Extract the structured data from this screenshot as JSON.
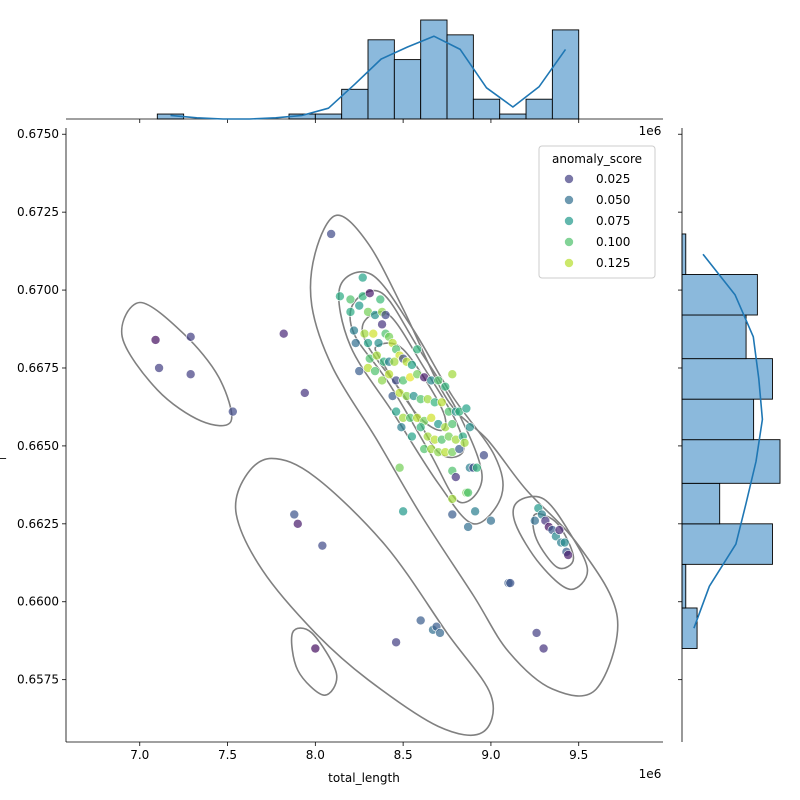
{
  "chart_data": {
    "type": "scatter",
    "kind": "jointplot",
    "xlabel": "total_length",
    "ylabel": "_",
    "x_offset_label": "1e6",
    "marginal_offset_label": "1e6",
    "xlim": [
      6.58,
      9.98
    ],
    "ylim": [
      0.6555,
      0.6752
    ],
    "x_ticks": [
      7.0,
      7.5,
      8.0,
      8.5,
      9.0,
      9.5
    ],
    "x_tick_labels": [
      "7.0",
      "7.5",
      "8.0",
      "8.5",
      "9.0",
      "9.5"
    ],
    "y_ticks": [
      0.6575,
      0.66,
      0.6625,
      0.665,
      0.6675,
      0.67,
      0.6725,
      0.675
    ],
    "y_tick_labels": [
      "0.6575",
      "0.6600",
      "0.6625",
      "0.6650",
      "0.6675",
      "0.6700",
      "0.6725",
      "0.6750"
    ],
    "grid": false,
    "hue": {
      "name": "anomaly_score",
      "colormap": "viridis",
      "range": [
        0.0,
        0.14
      ],
      "legend_placement": "top-right",
      "legend_values": [
        0.025,
        0.05,
        0.075,
        0.1,
        0.125
      ],
      "legend_labels": [
        "0.025",
        "0.050",
        "0.075",
        "0.100",
        "0.125"
      ]
    },
    "points": [
      [
        7.09,
        0.6684,
        0.005
      ],
      [
        7.11,
        0.6675,
        0.025
      ],
      [
        7.29,
        0.6685,
        0.025
      ],
      [
        7.29,
        0.6673,
        0.025
      ],
      [
        7.53,
        0.6661,
        0.03
      ],
      [
        7.82,
        0.6686,
        0.015
      ],
      [
        7.94,
        0.6667,
        0.02
      ],
      [
        8.09,
        0.6718,
        0.03
      ],
      [
        7.88,
        0.6628,
        0.035
      ],
      [
        7.9,
        0.6625,
        0.01
      ],
      [
        8.04,
        0.6618,
        0.03
      ],
      [
        8.0,
        0.6585,
        0.005
      ],
      [
        8.27,
        0.6704,
        0.08
      ],
      [
        8.14,
        0.6698,
        0.085
      ],
      [
        8.2,
        0.6697,
        0.1
      ],
      [
        8.27,
        0.6698,
        0.09
      ],
      [
        8.31,
        0.6699,
        0.01
      ],
      [
        8.37,
        0.6697,
        0.095
      ],
      [
        8.2,
        0.6693,
        0.085
      ],
      [
        8.25,
        0.6695,
        0.075
      ],
      [
        8.3,
        0.6693,
        0.11
      ],
      [
        8.34,
        0.6692,
        0.07
      ],
      [
        8.38,
        0.6693,
        0.115
      ],
      [
        8.4,
        0.6692,
        0.03
      ],
      [
        8.22,
        0.6687,
        0.06
      ],
      [
        8.28,
        0.6686,
        0.12
      ],
      [
        8.33,
        0.6686,
        0.13
      ],
      [
        8.4,
        0.6686,
        0.1
      ],
      [
        8.23,
        0.6683,
        0.05
      ],
      [
        8.3,
        0.6683,
        0.08
      ],
      [
        8.36,
        0.6683,
        0.07
      ],
      [
        8.38,
        0.6689,
        0.02
      ],
      [
        8.42,
        0.6685,
        0.11
      ],
      [
        8.44,
        0.6683,
        0.125
      ],
      [
        8.46,
        0.6681,
        0.1
      ],
      [
        8.48,
        0.6679,
        0.13
      ],
      [
        8.31,
        0.6678,
        0.1
      ],
      [
        8.35,
        0.6679,
        0.12
      ],
      [
        8.39,
        0.6677,
        0.09
      ],
      [
        8.42,
        0.6677,
        0.06
      ],
      [
        8.45,
        0.6677,
        0.12
      ],
      [
        8.5,
        0.6678,
        0.03
      ],
      [
        8.52,
        0.6677,
        0.125
      ],
      [
        8.55,
        0.6676,
        0.08
      ],
      [
        8.58,
        0.6681,
        0.09
      ],
      [
        8.25,
        0.6674,
        0.04
      ],
      [
        8.3,
        0.6675,
        0.125
      ],
      [
        8.34,
        0.6674,
        0.1
      ],
      [
        8.38,
        0.6671,
        0.115
      ],
      [
        8.42,
        0.6673,
        0.125
      ],
      [
        8.46,
        0.6671,
        0.03
      ],
      [
        8.5,
        0.6671,
        0.1
      ],
      [
        8.54,
        0.6672,
        0.135
      ],
      [
        8.58,
        0.6673,
        0.11
      ],
      [
        8.62,
        0.6672,
        0.01
      ],
      [
        8.66,
        0.6671,
        0.065
      ],
      [
        8.7,
        0.6671,
        0.1
      ],
      [
        8.74,
        0.6669,
        0.09
      ],
      [
        8.78,
        0.6673,
        0.12
      ],
      [
        8.44,
        0.6666,
        0.04
      ],
      [
        8.48,
        0.6667,
        0.125
      ],
      [
        8.52,
        0.6666,
        0.115
      ],
      [
        8.56,
        0.6666,
        0.07
      ],
      [
        8.6,
        0.6665,
        0.1
      ],
      [
        8.64,
        0.6665,
        0.12
      ],
      [
        8.68,
        0.6664,
        0.09
      ],
      [
        8.72,
        0.6664,
        0.125
      ],
      [
        8.76,
        0.6661,
        0.1
      ],
      [
        8.8,
        0.6661,
        0.07
      ],
      [
        8.46,
        0.6661,
        0.08
      ],
      [
        8.5,
        0.6659,
        0.12
      ],
      [
        8.54,
        0.6659,
        0.1
      ],
      [
        8.58,
        0.6659,
        0.125
      ],
      [
        8.62,
        0.6658,
        0.11
      ],
      [
        8.66,
        0.6659,
        0.13
      ],
      [
        8.7,
        0.6657,
        0.075
      ],
      [
        8.74,
        0.6656,
        0.12
      ],
      [
        8.78,
        0.6657,
        0.1
      ],
      [
        8.82,
        0.6661,
        0.09
      ],
      [
        8.86,
        0.6662,
        0.08
      ],
      [
        8.49,
        0.6656,
        0.06
      ],
      [
        8.55,
        0.6653,
        0.08
      ],
      [
        8.6,
        0.6656,
        0.09
      ],
      [
        8.64,
        0.6653,
        0.12
      ],
      [
        8.68,
        0.6652,
        0.125
      ],
      [
        8.72,
        0.6652,
        0.1
      ],
      [
        8.76,
        0.6653,
        0.11
      ],
      [
        8.8,
        0.6652,
        0.12
      ],
      [
        8.84,
        0.6653,
        0.085
      ],
      [
        8.88,
        0.6656,
        0.07
      ],
      [
        8.62,
        0.6649,
        0.1
      ],
      [
        8.66,
        0.6649,
        0.12
      ],
      [
        8.7,
        0.6648,
        0.115
      ],
      [
        8.74,
        0.6648,
        0.125
      ],
      [
        8.78,
        0.6648,
        0.11
      ],
      [
        8.82,
        0.6649,
        0.04
      ],
      [
        8.85,
        0.6651,
        0.12
      ],
      [
        8.48,
        0.6643,
        0.11
      ],
      [
        8.78,
        0.6642,
        0.1
      ],
      [
        8.8,
        0.664,
        0.02
      ],
      [
        8.88,
        0.6643,
        0.06
      ],
      [
        8.9,
        0.6643,
        0.03
      ],
      [
        8.92,
        0.6643,
        0.09
      ],
      [
        8.96,
        0.6647,
        0.03
      ],
      [
        8.78,
        0.6633,
        0.12
      ],
      [
        8.86,
        0.6635,
        0.11
      ],
      [
        8.87,
        0.6635,
        0.1
      ],
      [
        8.91,
        0.6629,
        0.06
      ],
      [
        8.5,
        0.6629,
        0.075
      ],
      [
        8.78,
        0.6628,
        0.04
      ],
      [
        8.87,
        0.6624,
        0.05
      ],
      [
        9.0,
        0.6626,
        0.05
      ],
      [
        9.25,
        0.6626,
        0.05
      ],
      [
        9.27,
        0.663,
        0.075
      ],
      [
        9.29,
        0.6628,
        0.06
      ],
      [
        9.31,
        0.6626,
        0.02
      ],
      [
        9.33,
        0.6624,
        0.005
      ],
      [
        9.35,
        0.6623,
        0.04
      ],
      [
        9.37,
        0.6621,
        0.065
      ],
      [
        9.39,
        0.6623,
        0.015
      ],
      [
        9.4,
        0.6619,
        0.06
      ],
      [
        9.42,
        0.6619,
        0.065
      ],
      [
        9.43,
        0.6616,
        0.04
      ],
      [
        9.44,
        0.6615,
        0.01
      ],
      [
        9.1,
        0.6606,
        0.04
      ],
      [
        9.11,
        0.6606,
        0.035
      ],
      [
        8.6,
        0.6594,
        0.04
      ],
      [
        8.67,
        0.6591,
        0.05
      ],
      [
        8.69,
        0.6592,
        0.04
      ],
      [
        8.71,
        0.659,
        0.045
      ],
      [
        9.26,
        0.659,
        0.025
      ],
      [
        9.3,
        0.6585,
        0.02
      ],
      [
        8.46,
        0.6587,
        0.025
      ]
    ],
    "marginal_x_histogram": {
      "bin_edges": [
        7.1,
        7.25,
        7.4,
        7.55,
        7.7,
        7.85,
        8.0,
        8.15,
        8.3,
        8.45,
        8.6,
        8.75,
        8.9,
        9.05,
        9.2,
        9.35,
        9.5
      ],
      "counts": [
        1,
        0,
        0,
        0,
        0,
        1,
        1,
        6,
        16,
        12,
        20,
        17,
        4,
        1,
        4,
        18
      ]
    },
    "marginal_y_histogram": {
      "bin_edges": [
        0.6585,
        0.6598,
        0.6612,
        0.6625,
        0.6638,
        0.6652,
        0.6665,
        0.6678,
        0.6692,
        0.6705,
        0.6718
      ],
      "counts": [
        4,
        1,
        24,
        10,
        26,
        19,
        24,
        17,
        20,
        1
      ]
    },
    "kde_levels": [
      [
        [
          7.0,
          0.6696
        ],
        [
          7.25,
          0.6686
        ],
        [
          7.45,
          0.6672
        ],
        [
          7.52,
          0.6658
        ],
        [
          7.35,
          0.6658
        ],
        [
          7.1,
          0.6668
        ],
        [
          6.9,
          0.6685
        ]
      ],
      [
        [
          8.0,
          0.6712
        ],
        [
          8.12,
          0.6724
        ],
        [
          8.3,
          0.6715
        ],
        [
          8.5,
          0.6694
        ],
        [
          8.75,
          0.6665
        ],
        [
          8.98,
          0.6652
        ],
        [
          9.2,
          0.6636
        ],
        [
          9.5,
          0.6618
        ],
        [
          9.72,
          0.6595
        ],
        [
          9.6,
          0.6572
        ],
        [
          9.35,
          0.6572
        ],
        [
          9.1,
          0.6584
        ],
        [
          8.9,
          0.6602
        ],
        [
          8.6,
          0.6628
        ],
        [
          8.35,
          0.6652
        ],
        [
          8.1,
          0.6675
        ],
        [
          7.98,
          0.6695
        ]
      ],
      [
        [
          7.6,
          0.664
        ],
        [
          7.75,
          0.6646
        ],
        [
          8.0,
          0.664
        ],
        [
          8.4,
          0.6618
        ],
        [
          8.75,
          0.659
        ],
        [
          9.0,
          0.657
        ],
        [
          8.95,
          0.6558
        ],
        [
          8.7,
          0.656
        ],
        [
          8.3,
          0.6575
        ],
        [
          8.0,
          0.659
        ],
        [
          7.7,
          0.661
        ],
        [
          7.55,
          0.6628
        ]
      ],
      [
        [
          7.87,
          0.659
        ],
        [
          7.98,
          0.659
        ],
        [
          8.12,
          0.6577
        ],
        [
          8.05,
          0.657
        ],
        [
          7.9,
          0.6578
        ]
      ],
      [
        [
          8.14,
          0.6701
        ],
        [
          8.32,
          0.6705
        ],
        [
          8.55,
          0.6688
        ],
        [
          8.78,
          0.6666
        ],
        [
          9.02,
          0.6647
        ],
        [
          9.06,
          0.6634
        ],
        [
          8.9,
          0.6625
        ],
        [
          8.7,
          0.6638
        ],
        [
          8.45,
          0.666
        ],
        [
          8.2,
          0.6682
        ]
      ],
      [
        [
          8.22,
          0.6696
        ],
        [
          8.38,
          0.6699
        ],
        [
          8.58,
          0.6682
        ],
        [
          8.82,
          0.666
        ],
        [
          8.95,
          0.664
        ],
        [
          8.82,
          0.6632
        ],
        [
          8.65,
          0.6648
        ],
        [
          8.42,
          0.667
        ],
        [
          8.22,
          0.6686
        ]
      ],
      [
        [
          8.28,
          0.669
        ],
        [
          8.42,
          0.6692
        ],
        [
          8.62,
          0.6675
        ],
        [
          8.8,
          0.6658
        ],
        [
          8.84,
          0.6648
        ],
        [
          8.7,
          0.6648
        ],
        [
          8.52,
          0.6665
        ],
        [
          8.3,
          0.6682
        ]
      ],
      [
        [
          8.35,
          0.6682
        ],
        [
          8.5,
          0.6681
        ],
        [
          8.72,
          0.6662
        ],
        [
          8.72,
          0.6655
        ],
        [
          8.58,
          0.666
        ],
        [
          8.38,
          0.6677
        ]
      ],
      [
        [
          9.15,
          0.6632
        ],
        [
          9.3,
          0.6633
        ],
        [
          9.45,
          0.6622
        ],
        [
          9.55,
          0.661
        ],
        [
          9.45,
          0.6604
        ],
        [
          9.28,
          0.6612
        ],
        [
          9.14,
          0.6625
        ]
      ],
      [
        [
          9.25,
          0.6628
        ],
        [
          9.38,
          0.6625
        ],
        [
          9.47,
          0.6614
        ],
        [
          9.38,
          0.6611
        ],
        [
          9.26,
          0.662
        ]
      ]
    ],
    "colors": {
      "histogram_fill": "#8bb9dc",
      "histogram_edge": "#000000",
      "kde_line": "#1f77b4",
      "contour_line": "#808080",
      "point_edge": "#ffffff"
    }
  }
}
